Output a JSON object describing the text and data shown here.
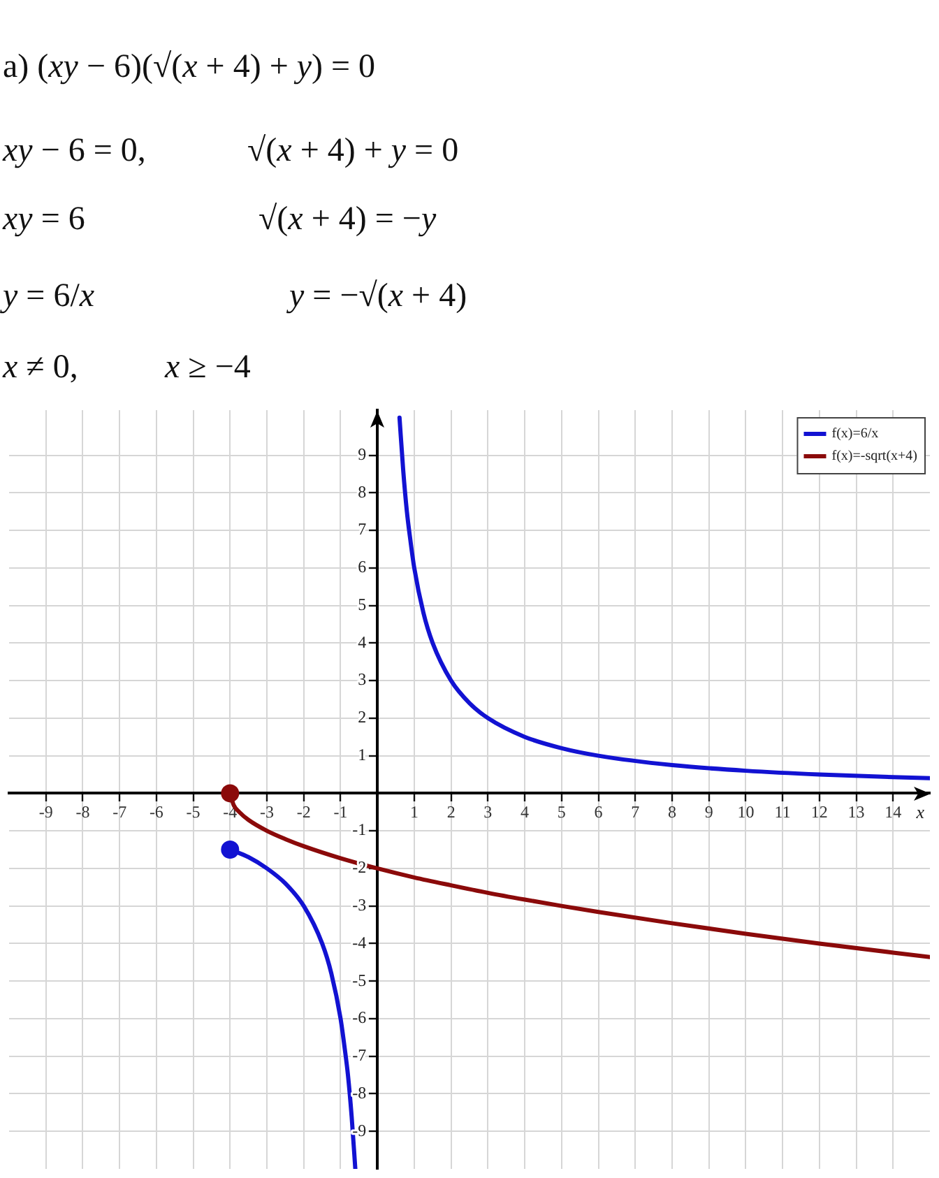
{
  "chart_data": {
    "type": "line",
    "title": "а) (xy − 6)(√(x + 4) + y) = 0",
    "annotations": [
      "xy − 6 = 0,",
      "√(x + 4) + y = 0",
      "xy = 6",
      "√(x + 4) = −y",
      "y = 6/x",
      "y = −√(x + 4)",
      "x ≠ 0,",
      "x ≥ −4"
    ],
    "xlabel": "x",
    "xlim": [
      -10,
      15
    ],
    "ylim": [
      -10,
      10.2
    ],
    "xticks": [
      -9,
      -8,
      -7,
      -6,
      -5,
      -4,
      -3,
      -2,
      -1,
      1,
      2,
      3,
      4,
      5,
      6,
      7,
      8,
      9,
      10,
      11,
      12,
      13,
      14
    ],
    "yticks": [
      -9,
      -8,
      -7,
      -6,
      -5,
      -4,
      -3,
      -2,
      -1,
      1,
      2,
      3,
      4,
      5,
      6,
      7,
      8,
      9
    ],
    "grid": true,
    "legend": "top right",
    "marker": "none",
    "series": [
      {
        "name": "f(x)=6/x",
        "color": "#1212d2",
        "x": [
          -4,
          -3.5,
          -3,
          -2.5,
          -2,
          -1.5,
          -1.25,
          -1,
          -0.9,
          -0.8,
          -0.7,
          -0.6,
          0,
          0.6,
          0.7,
          0.8,
          0.9,
          1,
          1.25,
          1.5,
          2,
          2.5,
          3,
          4,
          5,
          6,
          8,
          10,
          12,
          15
        ],
        "values": [
          -1.5,
          -1.7,
          -2,
          -2.4,
          -3,
          -4,
          -4.8,
          -6,
          -6.7,
          -7.5,
          -8.6,
          -10,
          null,
          10,
          8.6,
          7.5,
          6.7,
          6,
          4.8,
          4,
          3,
          2.4,
          2,
          1.5,
          1.2,
          1,
          0.75,
          0.6,
          0.5,
          0.4
        ]
      },
      {
        "name": "f(x)=-sqrt(x+4)",
        "color": "#8b0a0a",
        "x": [
          -4,
          -3.9,
          -3.75,
          -3.5,
          -3,
          -2.5,
          -2,
          -1,
          0,
          1,
          2,
          3,
          4,
          5,
          6,
          8,
          10,
          12,
          15
        ],
        "values": [
          0,
          -0.32,
          -0.5,
          -0.71,
          -1,
          -1.22,
          -1.41,
          -1.73,
          -2,
          -2.24,
          -2.45,
          -2.65,
          -2.83,
          -3,
          -3.16,
          -3.46,
          -3.74,
          -4,
          -4.36
        ]
      },
      {
        "type": "scatter",
        "marker": "circle",
        "color": "#1212d2",
        "x": [
          -4
        ],
        "values": [
          -1.5
        ]
      },
      {
        "type": "scatter",
        "marker": "circle",
        "color": "#8b0a0a",
        "x": [
          -4
        ],
        "values": [
          0
        ]
      }
    ]
  }
}
